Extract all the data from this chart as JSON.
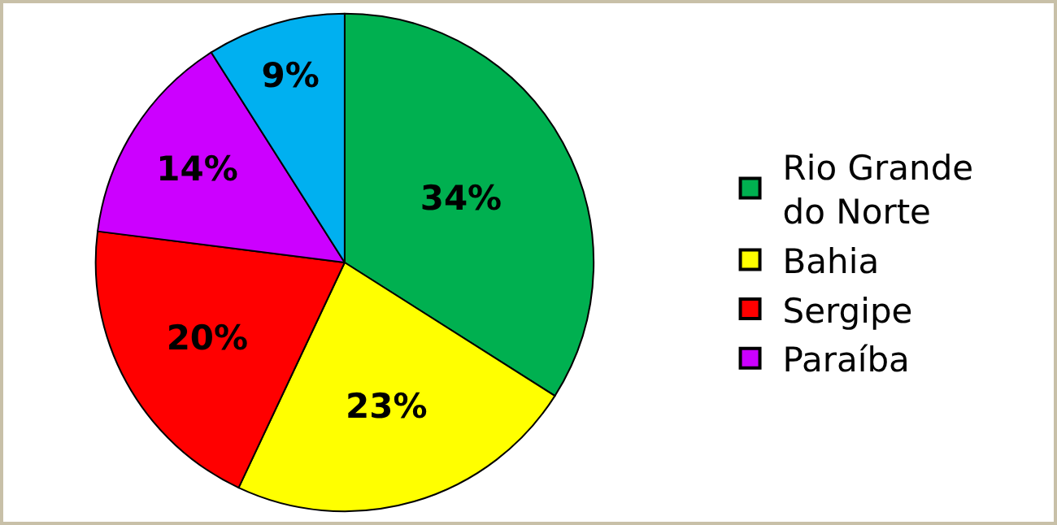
{
  "chart_data": {
    "type": "pie",
    "categories": [
      "Rio Grande do Norte",
      "Bahia",
      "Sergipe",
      "Paraíba",
      null
    ],
    "values": [
      34,
      23,
      20,
      14,
      9
    ],
    "value_labels": [
      "34%",
      "23%",
      "20%",
      "14%",
      "9%"
    ],
    "colors": [
      "#00b050",
      "#ffff00",
      "#ff0000",
      "#cc00ff",
      "#00b0f0"
    ],
    "legend": "right"
  }
}
